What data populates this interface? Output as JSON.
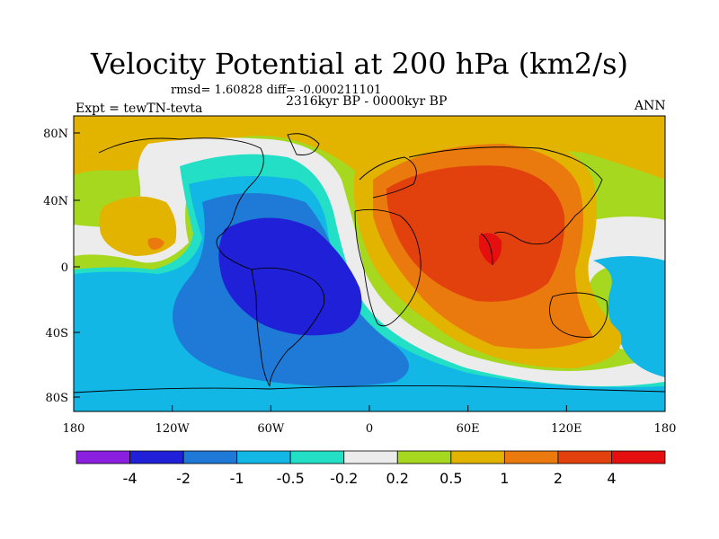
{
  "title": "Velocity Potential at 200 hPa (km2/s)",
  "stats": "rmsd= 1.60828 diff= -0.000211101",
  "period": "2316kyr BP - 0000kyr BP",
  "experiment": "Expt = tewTN-tevta",
  "season": "ANN",
  "lat_ticks": [
    "80N",
    "40N",
    "0",
    "40S",
    "80S"
  ],
  "lon_ticks": [
    "180",
    "120W",
    "60W",
    "0",
    "60E",
    "120E",
    "180"
  ],
  "colorbar": {
    "labels": [
      "-4",
      "-2",
      "-1",
      "-0.5",
      "-0.2",
      "0.2",
      "0.5",
      "1",
      "2",
      "4"
    ],
    "colors": [
      "#8a1fe0",
      "#2020d8",
      "#1e7ad6",
      "#12b7e6",
      "#22dfc6",
      "#ececec",
      "#a6d820",
      "#e2b400",
      "#eb7a0e",
      "#e2410e",
      "#e60f0f"
    ]
  }
}
